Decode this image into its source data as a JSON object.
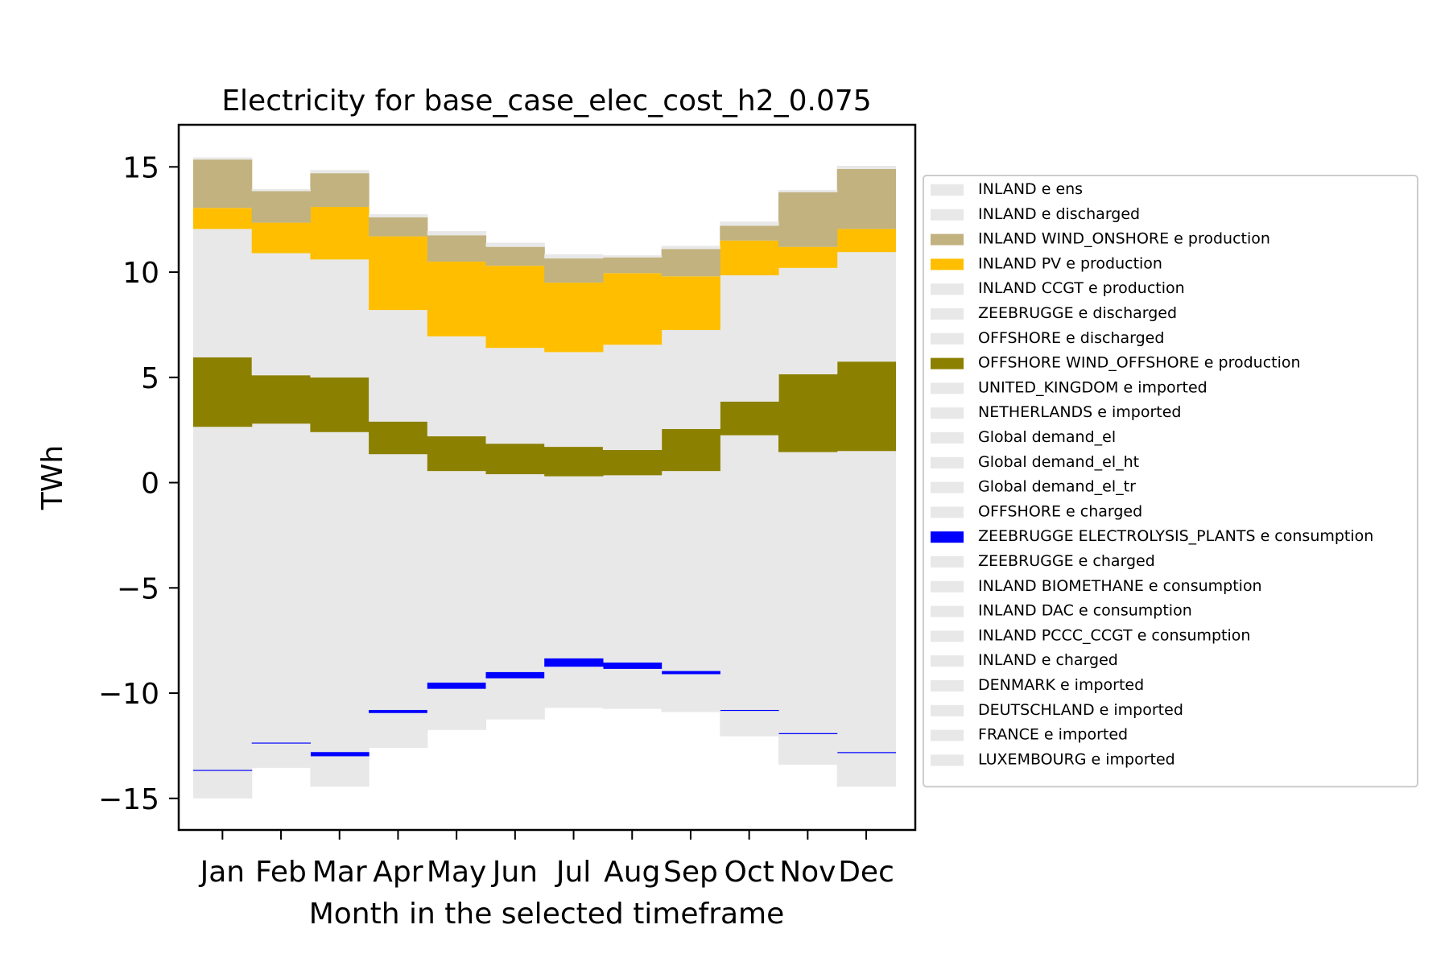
{
  "chart_data": {
    "type": "area",
    "title": "Electricity for base_case_elec_cost_h2_0.075",
    "xlabel": "Month in the selected timeframe",
    "ylabel": "TWh",
    "ylim": [
      -16.5,
      17
    ],
    "yticks": [
      15,
      10,
      5,
      0,
      -5,
      -10,
      -15
    ],
    "ytick_labels": [
      "15",
      "10",
      "5",
      "0",
      "−5",
      "−10",
      "−15"
    ],
    "categories": [
      "Jan",
      "Feb",
      "Mar",
      "Apr",
      "May",
      "Jun",
      "Jul",
      "Aug",
      "Sep",
      "Oct",
      "Nov",
      "Dec"
    ],
    "grid": false,
    "legend_position": "right",
    "stacked_positive": {
      "baseline": [
        0,
        0,
        0,
        0,
        0,
        0,
        0,
        0,
        0,
        0,
        0,
        0
      ],
      "series": [
        {
          "name": "INLAND CCGT e production",
          "color": "#e8e8e8",
          "values": [
            2.65,
            2.8,
            2.4,
            1.35,
            0.55,
            0.4,
            0.3,
            0.35,
            0.55,
            2.25,
            1.45,
            1.5
          ]
        },
        {
          "name": "OFFSHORE WIND_OFFSHORE e production",
          "color": "#8b8000",
          "values": [
            3.3,
            2.3,
            2.6,
            1.55,
            1.65,
            1.45,
            1.4,
            1.2,
            2.0,
            1.6,
            3.7,
            4.25
          ]
        },
        {
          "name": "UNITED_KINGDOM e imported",
          "color": "#e8e8e8",
          "values": [
            6.1,
            5.8,
            5.6,
            5.3,
            4.75,
            4.55,
            4.5,
            5.0,
            4.7,
            6.0,
            5.05,
            5.2
          ]
        },
        {
          "name": "INLAND PV e production",
          "color": "#ffbf00",
          "values": [
            1.0,
            1.45,
            2.5,
            3.5,
            3.55,
            3.9,
            3.3,
            3.4,
            2.55,
            1.65,
            1.0,
            1.1
          ]
        },
        {
          "name": "INLAND WIND_ONSHORE e production",
          "color": "#c2b280",
          "values": [
            2.3,
            1.5,
            1.6,
            0.9,
            1.25,
            0.9,
            1.15,
            0.75,
            1.3,
            0.7,
            2.6,
            2.85
          ]
        },
        {
          "name": "INLAND e discharged",
          "color": "#e8e8e8",
          "values": [
            0.1,
            0.1,
            0.15,
            0.15,
            0.2,
            0.2,
            0.2,
            0.1,
            0.15,
            0.2,
            0.1,
            0.15
          ]
        }
      ]
    },
    "stacked_negative": {
      "series": [
        {
          "name": "Global demand_el",
          "color": "#e8e8e8",
          "values": [
            -13.65,
            -12.35,
            -12.8,
            -10.8,
            -9.5,
            -9.0,
            -8.35,
            -8.55,
            -8.95,
            -10.8,
            -11.9,
            -12.8
          ]
        },
        {
          "name": "ZEEBRUGGE ELECTROLYSIS_PLANTS e consumption",
          "color": "#0000ff",
          "values": [
            -0.05,
            -0.05,
            -0.2,
            -0.15,
            -0.3,
            -0.3,
            -0.4,
            -0.3,
            -0.15,
            -0.05,
            -0.05,
            -0.05
          ]
        },
        {
          "name": "INLAND e charged",
          "color": "#e8e8e8",
          "values": [
            -1.3,
            -1.15,
            -1.45,
            -1.65,
            -1.95,
            -1.95,
            -1.95,
            -1.9,
            -1.8,
            -1.2,
            -1.45,
            -1.6
          ]
        }
      ]
    },
    "legend_entries": [
      {
        "label": "INLAND e ens",
        "color": "#e8e8e8"
      },
      {
        "label": "INLAND e discharged",
        "color": "#e8e8e8"
      },
      {
        "label": "INLAND WIND_ONSHORE e production",
        "color": "#c2b280"
      },
      {
        "label": "INLAND PV e production",
        "color": "#ffbf00"
      },
      {
        "label": "INLAND CCGT e production",
        "color": "#e8e8e8"
      },
      {
        "label": "ZEEBRUGGE e discharged",
        "color": "#e8e8e8"
      },
      {
        "label": "OFFSHORE e discharged",
        "color": "#e8e8e8"
      },
      {
        "label": "OFFSHORE WIND_OFFSHORE e production",
        "color": "#8b8000"
      },
      {
        "label": "UNITED_KINGDOM e imported",
        "color": "#e8e8e8"
      },
      {
        "label": "NETHERLANDS e imported",
        "color": "#e8e8e8"
      },
      {
        "label": "Global demand_el",
        "color": "#e8e8e8"
      },
      {
        "label": "Global demand_el_ht",
        "color": "#e8e8e8"
      },
      {
        "label": "Global demand_el_tr",
        "color": "#e8e8e8"
      },
      {
        "label": "OFFSHORE e charged",
        "color": "#e8e8e8"
      },
      {
        "label": "ZEEBRUGGE ELECTROLYSIS_PLANTS e consumption",
        "color": "#0000ff"
      },
      {
        "label": "ZEEBRUGGE e charged",
        "color": "#e8e8e8"
      },
      {
        "label": "INLAND BIOMETHANE e consumption",
        "color": "#e8e8e8"
      },
      {
        "label": "INLAND DAC e consumption",
        "color": "#e8e8e8"
      },
      {
        "label": "INLAND PCCC_CCGT e consumption",
        "color": "#e8e8e8"
      },
      {
        "label": "INLAND e charged",
        "color": "#e8e8e8"
      },
      {
        "label": "DENMARK e imported",
        "color": "#e8e8e8"
      },
      {
        "label": "DEUTSCHLAND e imported",
        "color": "#e8e8e8"
      },
      {
        "label": "FRANCE e imported",
        "color": "#e8e8e8"
      },
      {
        "label": "LUXEMBOURG e imported",
        "color": "#e8e8e8"
      }
    ]
  }
}
